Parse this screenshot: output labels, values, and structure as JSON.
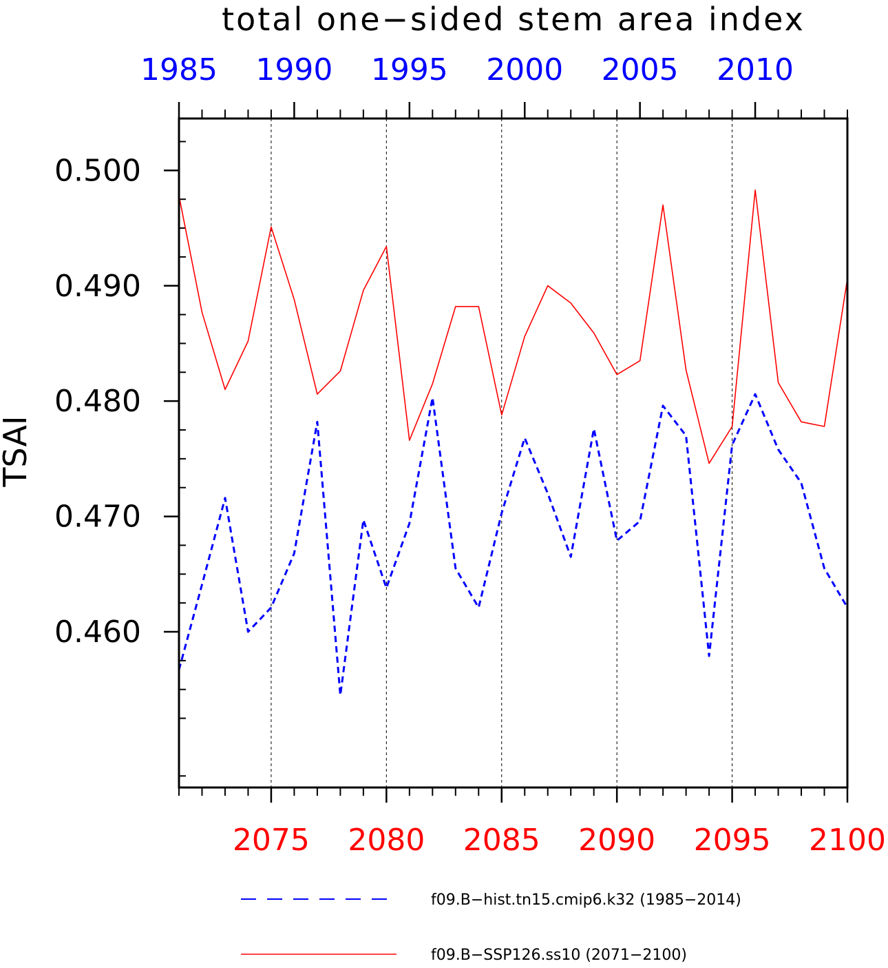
{
  "chart_data": {
    "type": "line",
    "title": "total one−sided stem area index",
    "ylabel": "TSAI",
    "ylim": [
      0.4465,
      0.5045
    ],
    "yticks": [
      "0.500",
      "0.490",
      "0.480",
      "0.470",
      "0.460"
    ],
    "ytick_values": [
      0.5,
      0.49,
      0.48,
      0.47,
      0.46
    ],
    "grid": "vertical dashed lines at major bottom-axis ticks",
    "top_axis": {
      "color": "#0000ff",
      "range": [
        1985,
        2014
      ],
      "tick_values": [
        1985,
        1990,
        1995,
        2000,
        2005,
        2010
      ],
      "tick_labels": [
        "1985",
        "1990",
        "1995",
        "2000",
        "2005",
        "2010"
      ]
    },
    "bottom_axis": {
      "color": "#ff0000",
      "range": [
        2071,
        2100
      ],
      "tick_values": [
        2075,
        2080,
        2085,
        2090,
        2095,
        2100
      ],
      "tick_labels": [
        "2075",
        "2080",
        "2085",
        "2090",
        "2095",
        "2100"
      ]
    },
    "legend_position": "bottom",
    "series": [
      {
        "name": "f09.B−hist.tn15.cmip6.k32 (1985−2014)",
        "color": "#0000ff",
        "style": "dashed",
        "x": [
          1985,
          1986,
          1987,
          1988,
          1989,
          1990,
          1991,
          1992,
          1993,
          1994,
          1995,
          1996,
          1997,
          1998,
          1999,
          2000,
          2001,
          2002,
          2003,
          2004,
          2005,
          2006,
          2007,
          2008,
          2009,
          2010,
          2011,
          2012,
          2013,
          2014
        ],
        "values": [
          0.4567,
          0.4641,
          0.4716,
          0.46,
          0.4621,
          0.4668,
          0.4782,
          0.4545,
          0.4697,
          0.4638,
          0.4694,
          0.4803,
          0.4655,
          0.4621,
          0.4703,
          0.4768,
          0.472,
          0.4665,
          0.4776,
          0.4679,
          0.4696,
          0.4796,
          0.477,
          0.4579,
          0.4762,
          0.4806,
          0.4758,
          0.4729,
          0.4655,
          0.4621
        ]
      },
      {
        "name": "f09.B−SSP126.ss10 (2071−2100)",
        "color": "#ff0000",
        "style": "solid",
        "x": [
          2071,
          2072,
          2073,
          2074,
          2075,
          2076,
          2077,
          2078,
          2079,
          2080,
          2081,
          2082,
          2083,
          2084,
          2085,
          2086,
          2087,
          2088,
          2089,
          2090,
          2091,
          2092,
          2093,
          2094,
          2095,
          2096,
          2097,
          2098,
          2099,
          2100
        ],
        "values": [
          0.4978,
          0.4877,
          0.481,
          0.4852,
          0.4951,
          0.4888,
          0.4806,
          0.4826,
          0.4896,
          0.4934,
          0.4766,
          0.4815,
          0.4882,
          0.4882,
          0.4788,
          0.4856,
          0.49,
          0.4885,
          0.4859,
          0.4823,
          0.4835,
          0.497,
          0.4827,
          0.4746,
          0.4778,
          0.4983,
          0.4816,
          0.4782,
          0.4778,
          0.4906
        ]
      }
    ]
  }
}
